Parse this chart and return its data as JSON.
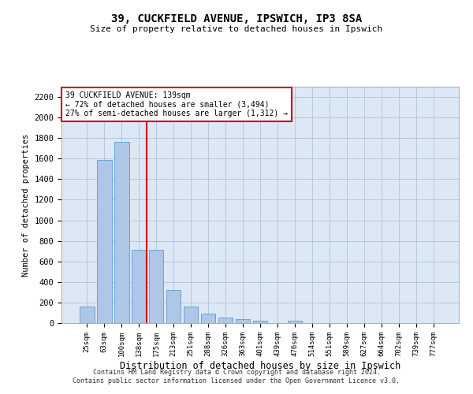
{
  "title_line1": "39, CUCKFIELD AVENUE, IPSWICH, IP3 8SA",
  "title_line2": "Size of property relative to detached houses in Ipswich",
  "xlabel": "Distribution of detached houses by size in Ipswich",
  "ylabel": "Number of detached properties",
  "categories": [
    "25sqm",
    "63sqm",
    "100sqm",
    "138sqm",
    "175sqm",
    "213sqm",
    "251sqm",
    "288sqm",
    "326sqm",
    "363sqm",
    "401sqm",
    "439sqm",
    "476sqm",
    "514sqm",
    "551sqm",
    "589sqm",
    "627sqm",
    "664sqm",
    "702sqm",
    "739sqm",
    "777sqm"
  ],
  "values": [
    160,
    1590,
    1760,
    710,
    710,
    320,
    160,
    90,
    55,
    40,
    25,
    0,
    20,
    0,
    0,
    0,
    0,
    0,
    0,
    0,
    0
  ],
  "bar_color": "#aec6e8",
  "bar_edge_color": "#5a9fd4",
  "vline_color": "#cc0000",
  "annotation_text": "39 CUCKFIELD AVENUE: 139sqm\n← 72% of detached houses are smaller (3,494)\n27% of semi-detached houses are larger (1,312) →",
  "annotation_box_color": "#ffffff",
  "annotation_box_edge": "#cc0000",
  "ylim": [
    0,
    2300
  ],
  "yticks": [
    0,
    200,
    400,
    600,
    800,
    1000,
    1200,
    1400,
    1600,
    1800,
    2000,
    2200
  ],
  "grid_color": "#b0c4d8",
  "background_color": "#dce8f5",
  "footer_line1": "Contains HM Land Registry data © Crown copyright and database right 2024.",
  "footer_line2": "Contains public sector information licensed under the Open Government Licence v3.0."
}
